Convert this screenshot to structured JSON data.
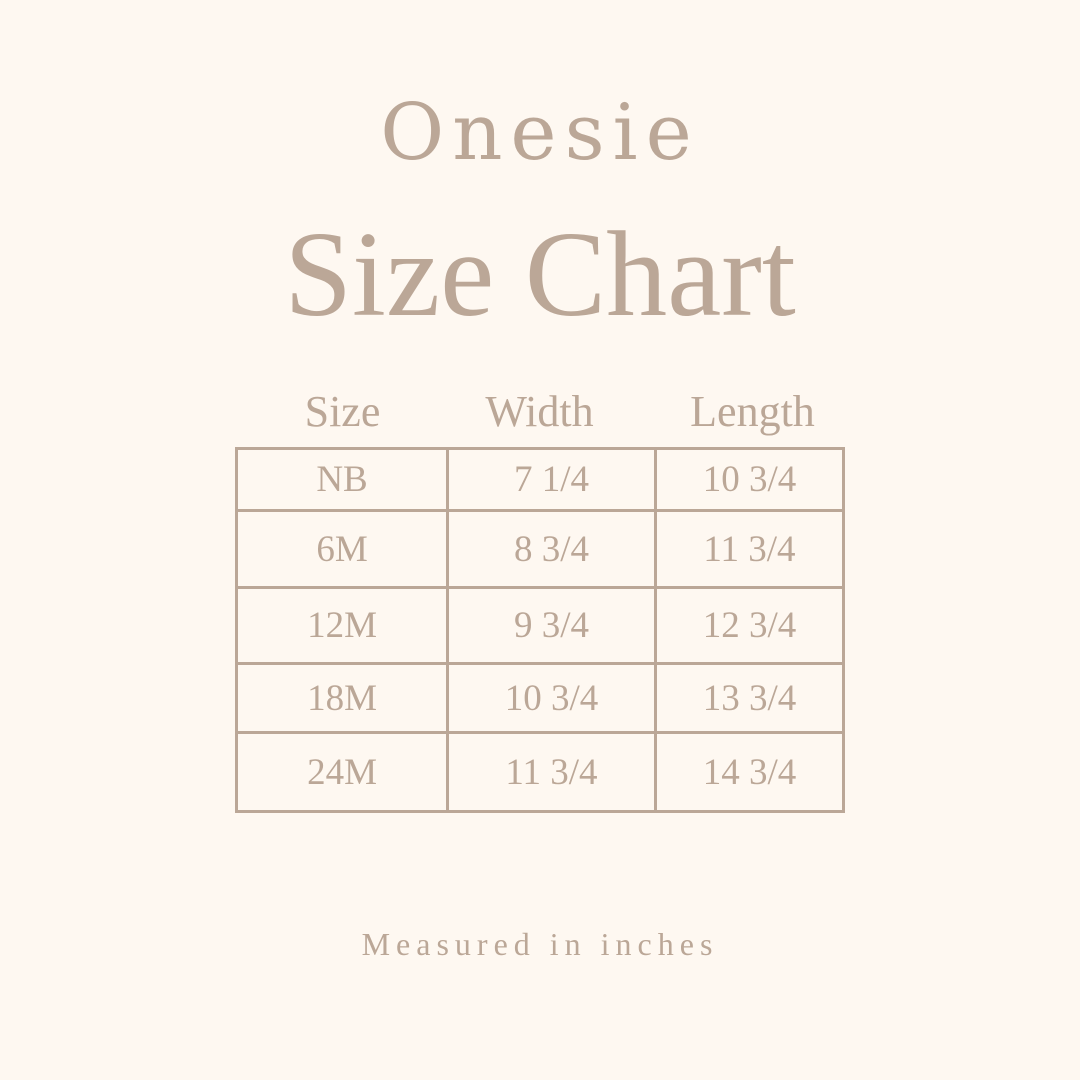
{
  "title_line1": "Onesie",
  "title_line2": "Size Chart",
  "table": {
    "headers": [
      "Size",
      "Width",
      "Length"
    ],
    "rows": [
      [
        "NB",
        "7 1/4",
        "10 3/4"
      ],
      [
        "6M",
        "8 3/4",
        "11 3/4"
      ],
      [
        "12M",
        "9 3/4",
        "12 3/4"
      ],
      [
        "18M",
        "10 3/4",
        "13 3/4"
      ],
      [
        "24M",
        "11 3/4",
        "14 3/4"
      ]
    ]
  },
  "footer_note": "Measured in inches",
  "colors": {
    "background": "#fef8f1",
    "text_and_lines": "#bba797"
  }
}
